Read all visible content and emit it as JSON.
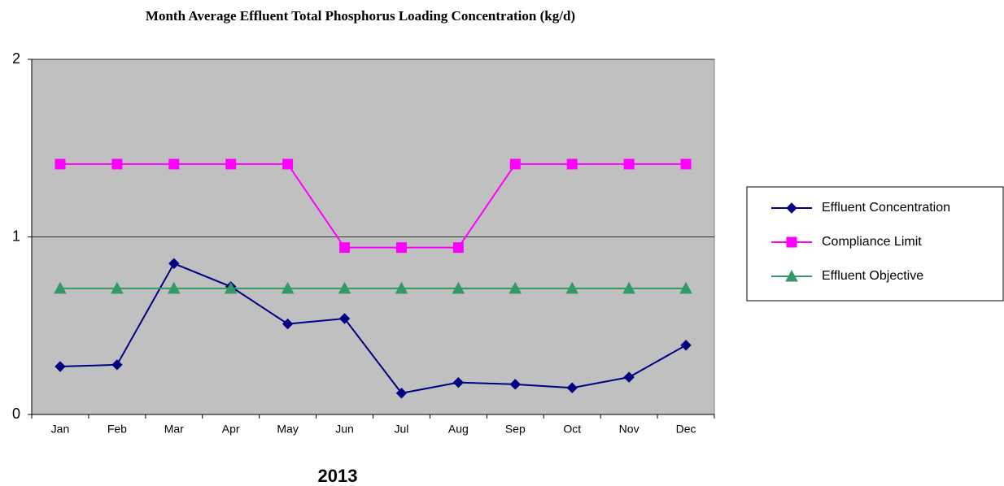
{
  "chart_data": {
    "type": "line",
    "title": "Month Average Effluent Total Phosphorus Loading Concentration (kg/d)",
    "x_label": "2013",
    "categories": [
      "Jan",
      "Feb",
      "Mar",
      "Apr",
      "May",
      "Jun",
      "Jul",
      "Aug",
      "Sep",
      "Oct",
      "Nov",
      "Dec"
    ],
    "series": [
      {
        "name": "Effluent Concentration",
        "color": "#000080",
        "marker": "diamond",
        "values": [
          0.27,
          0.28,
          0.85,
          0.72,
          0.51,
          0.54,
          0.12,
          0.18,
          0.17,
          0.15,
          0.21,
          0.39
        ]
      },
      {
        "name": "Compliance Limit",
        "color": "#ff00ff",
        "marker": "square",
        "values": [
          1.41,
          1.41,
          1.41,
          1.41,
          1.41,
          0.94,
          0.94,
          0.94,
          1.41,
          1.41,
          1.41,
          1.41
        ]
      },
      {
        "name": "Effluent Objective",
        "color": "#339966",
        "marker": "triangle",
        "values": [
          0.71,
          0.71,
          0.71,
          0.71,
          0.71,
          0.71,
          0.71,
          0.71,
          0.71,
          0.71,
          0.71,
          0.71
        ]
      }
    ],
    "ylim": [
      0,
      2
    ],
    "yticks": [
      0,
      1,
      2
    ],
    "grid": true,
    "plot_background": "#c0c0c0",
    "legend": "right"
  }
}
